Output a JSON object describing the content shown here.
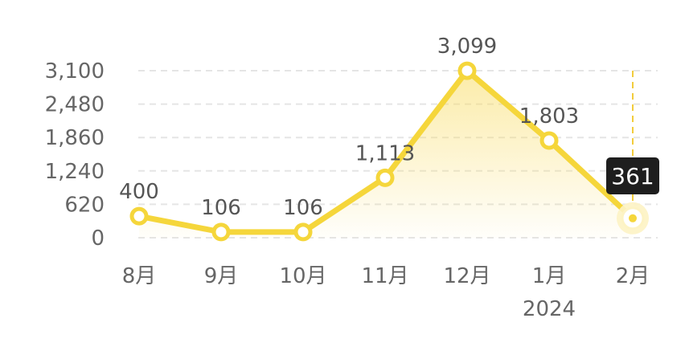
{
  "chart_data": {
    "type": "line",
    "categories": [
      "8月",
      "9月",
      "10月",
      "11月",
      "12月",
      "1月",
      "2月"
    ],
    "values": [
      400,
      106,
      106,
      1113,
      3099,
      1803,
      361
    ],
    "value_labels": [
      "400",
      "106",
      "106",
      "1,113",
      "3,099",
      "1,803",
      "361"
    ],
    "y_ticks": [
      0,
      620,
      1240,
      1860,
      2480,
      3100
    ],
    "y_tick_labels": [
      "0",
      "620",
      "1,240",
      "1,860",
      "2,480",
      "3,100"
    ],
    "ylim": [
      0,
      3100
    ],
    "year_annotation": "2024",
    "year_annotation_category": "1月",
    "highlighted_category": "2月",
    "tooltip_value": "361",
    "grid": "horizontal-dashed",
    "title": "",
    "xlabel": "",
    "ylabel": "",
    "colors": {
      "line": "#F5D63B",
      "marker_fill": "#FFFFFF",
      "area_top": "#F9DC62",
      "grid": "#E5E5E5",
      "tooltip_bg": "#1E1E1E",
      "highlight_ring": "#FDF3C4",
      "guide_line": "#F2CC3C"
    }
  }
}
